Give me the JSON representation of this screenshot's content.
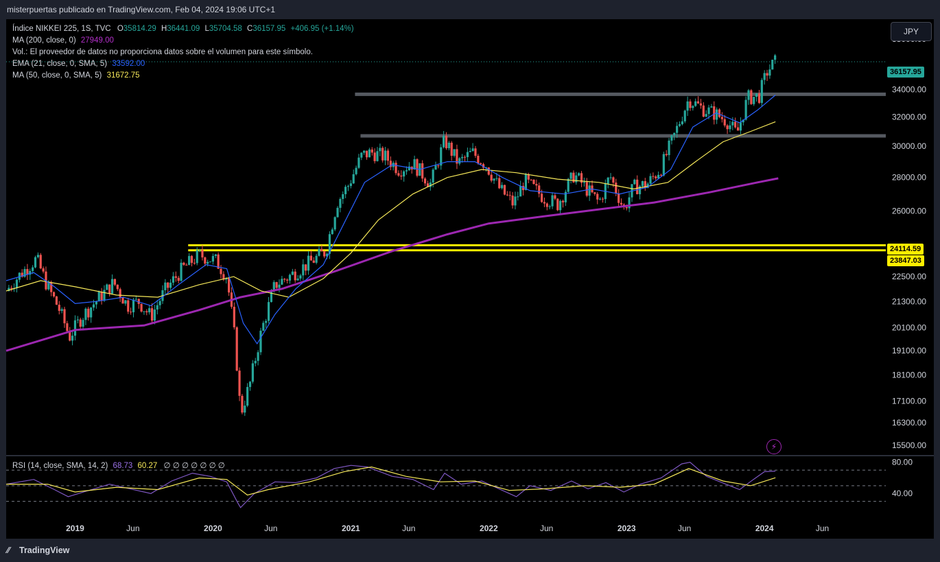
{
  "header": {
    "publisher_line": "misterpuertas publicado en TradingView.com, Feb 04, 2024 19:06 UTC+1"
  },
  "legend": {
    "symbol": "Índice NIKKEI 225, 1S, TVC",
    "open_label": "O",
    "open": "35814.29",
    "high_label": "H",
    "high": "36441.09",
    "low_label": "L",
    "low": "35704.58",
    "close_label": "C",
    "close": "36157.95",
    "change": "+406.95 (+1.14%)",
    "ma200_label": "MA (200, close, 0)",
    "ma200_value": "27949.00",
    "volume_note": "Vol.: El proveedor de datos no proporciona datos sobre el volumen para este símbolo.",
    "ema21_label": "EMA (21, close, 0, SMA, 5)",
    "ema21_value": "33592.00",
    "ma50_label": "MA (50, close, 0, SMA, 5)",
    "ma50_value": "31672.75"
  },
  "rsi_legend": {
    "label": "RSI (14, close, SMA, 14, 2)",
    "rsi_value": "68.73",
    "rsi_ma_value": "60.27",
    "placeholders": "∅ ∅ ∅ ∅ ∅ ∅ ∅"
  },
  "currency_button": "JPY",
  "price_tags": {
    "last": "36157.95",
    "level_upper": "24114.59",
    "level_lower": "23847.03"
  },
  "footer": {
    "brand": "TradingView"
  },
  "colors": {
    "up": "#26a69a",
    "down": "#ef5350",
    "ma200": "#9c27b0",
    "ema21": "#2962ff",
    "ma50": "#f7e95a",
    "rsi": "#7e57c2",
    "resistance": "#555960",
    "support": "#ffee00"
  },
  "chart_data": {
    "type": "candlestick",
    "timeframe": "1S",
    "y_ticks": [
      "38000.00",
      "34000.00",
      "32000.00",
      "30000.00",
      "28000.00",
      "26000.00",
      "22500.00",
      "21300.00",
      "20100.00",
      "19100.00",
      "18100.00",
      "17100.00",
      "16300.00",
      "15500.00"
    ],
    "y_scale": "log",
    "ylim": [
      15200,
      39000
    ],
    "x_ticks": [
      {
        "label": "2019",
        "t": 2019.0
      },
      {
        "label": "Jun",
        "t": 2019.42
      },
      {
        "label": "2020",
        "t": 2020.0
      },
      {
        "label": "Jun",
        "t": 2020.42
      },
      {
        "label": "2021",
        "t": 2021.0
      },
      {
        "label": "Jun",
        "t": 2021.42
      },
      {
        "label": "2022",
        "t": 2022.0
      },
      {
        "label": "Jun",
        "t": 2022.42
      },
      {
        "label": "2023",
        "t": 2023.0
      },
      {
        "label": "Jun",
        "t": 2023.42
      },
      {
        "label": "2024",
        "t": 2024.0
      },
      {
        "label": "Jun",
        "t": 2024.42
      }
    ],
    "xlim": [
      2018.5,
      2024.88
    ],
    "close_path": [
      [
        2018.5,
        21800
      ],
      [
        2018.6,
        22600
      ],
      [
        2018.72,
        23400
      ],
      [
        2018.8,
        22000
      ],
      [
        2018.88,
        21000
      ],
      [
        2018.96,
        19700
      ],
      [
        2019.05,
        20600
      ],
      [
        2019.15,
        21300
      ],
      [
        2019.28,
        22200
      ],
      [
        2019.38,
        21100
      ],
      [
        2019.46,
        21300
      ],
      [
        2019.55,
        20600
      ],
      [
        2019.65,
        21800
      ],
      [
        2019.78,
        22900
      ],
      [
        2019.9,
        23600
      ],
      [
        2020.02,
        23300
      ],
      [
        2020.1,
        22500
      ],
      [
        2020.16,
        19500
      ],
      [
        2020.2,
        16600
      ],
      [
        2020.27,
        17800
      ],
      [
        2020.35,
        19900
      ],
      [
        2020.45,
        22100
      ],
      [
        2020.55,
        22500
      ],
      [
        2020.68,
        23100
      ],
      [
        2020.82,
        23800
      ],
      [
        2020.9,
        26500
      ],
      [
        2020.98,
        27500
      ],
      [
        2021.08,
        29400
      ],
      [
        2021.15,
        29600
      ],
      [
        2021.25,
        29300
      ],
      [
        2021.35,
        28500
      ],
      [
        2021.45,
        28900
      ],
      [
        2021.58,
        27600
      ],
      [
        2021.68,
        30400
      ],
      [
        2021.78,
        28900
      ],
      [
        2021.88,
        29600
      ],
      [
        2021.98,
        28800
      ],
      [
        2022.08,
        27300
      ],
      [
        2022.18,
        26400
      ],
      [
        2022.26,
        27800
      ],
      [
        2022.4,
        26800
      ],
      [
        2022.5,
        26400
      ],
      [
        2022.62,
        28200
      ],
      [
        2022.72,
        27200
      ],
      [
        2022.8,
        26500
      ],
      [
        2022.88,
        28100
      ],
      [
        2022.98,
        26100
      ],
      [
        2023.05,
        27400
      ],
      [
        2023.15,
        27600
      ],
      [
        2023.25,
        28600
      ],
      [
        2023.35,
        30800
      ],
      [
        2023.45,
        33300
      ],
      [
        2023.55,
        32600
      ],
      [
        2023.65,
        32200
      ],
      [
        2023.73,
        31700
      ],
      [
        2023.8,
        30800
      ],
      [
        2023.88,
        33400
      ],
      [
        2023.96,
        33500
      ],
      [
        2024.02,
        35400
      ],
      [
        2024.08,
        36157.95
      ]
    ],
    "ma200_path": [
      [
        2018.5,
        19100
      ],
      [
        2019.0,
        20000
      ],
      [
        2019.5,
        20200
      ],
      [
        2019.9,
        20900
      ],
      [
        2020.2,
        21500
      ],
      [
        2020.5,
        21900
      ],
      [
        2020.9,
        22800
      ],
      [
        2021.3,
        23800
      ],
      [
        2021.7,
        24700
      ],
      [
        2022.0,
        25300
      ],
      [
        2022.4,
        25700
      ],
      [
        2022.8,
        26100
      ],
      [
        2023.2,
        26500
      ],
      [
        2023.6,
        27100
      ],
      [
        2023.95,
        27700
      ],
      [
        2024.1,
        27949
      ]
    ],
    "ema21_path": [
      [
        2018.5,
        22300
      ],
      [
        2018.7,
        22700
      ],
      [
        2018.85,
        22000
      ],
      [
        2019.0,
        21200
      ],
      [
        2019.15,
        21300
      ],
      [
        2019.35,
        21500
      ],
      [
        2019.55,
        21100
      ],
      [
        2019.75,
        22100
      ],
      [
        2019.95,
        23100
      ],
      [
        2020.1,
        22900
      ],
      [
        2020.22,
        20300
      ],
      [
        2020.32,
        19400
      ],
      [
        2020.45,
        20700
      ],
      [
        2020.6,
        21900
      ],
      [
        2020.8,
        23100
      ],
      [
        2020.95,
        25300
      ],
      [
        2021.1,
        27700
      ],
      [
        2021.3,
        28800
      ],
      [
        2021.5,
        28500
      ],
      [
        2021.7,
        29000
      ],
      [
        2021.9,
        29000
      ],
      [
        2022.1,
        28000
      ],
      [
        2022.3,
        27200
      ],
      [
        2022.55,
        27000
      ],
      [
        2022.75,
        27300
      ],
      [
        2022.95,
        27000
      ],
      [
        2023.15,
        27400
      ],
      [
        2023.32,
        28500
      ],
      [
        2023.48,
        31300
      ],
      [
        2023.65,
        32300
      ],
      [
        2023.82,
        31600
      ],
      [
        2023.95,
        32500
      ],
      [
        2024.08,
        33592
      ]
    ],
    "ma50_path": [
      [
        2018.5,
        21800
      ],
      [
        2018.75,
        22300
      ],
      [
        2019.0,
        22000
      ],
      [
        2019.3,
        21600
      ],
      [
        2019.6,
        21500
      ],
      [
        2019.9,
        22100
      ],
      [
        2020.15,
        22500
      ],
      [
        2020.35,
        21800
      ],
      [
        2020.55,
        21500
      ],
      [
        2020.8,
        22400
      ],
      [
        2021.0,
        23700
      ],
      [
        2021.2,
        25500
      ],
      [
        2021.45,
        27000
      ],
      [
        2021.7,
        28000
      ],
      [
        2021.95,
        28500
      ],
      [
        2022.2,
        28300
      ],
      [
        2022.5,
        27900
      ],
      [
        2022.8,
        27700
      ],
      [
        2023.05,
        27300
      ],
      [
        2023.3,
        27700
      ],
      [
        2023.5,
        29000
      ],
      [
        2023.7,
        30300
      ],
      [
        2023.9,
        31000
      ],
      [
        2024.08,
        31672.75
      ]
    ],
    "horizontal_levels": [
      {
        "name": "resistance-upper",
        "value": 33650,
        "from": 2021.03,
        "to": 2024.88
      },
      {
        "name": "resistance-lower",
        "value": 30700,
        "from": 2021.07,
        "to": 2024.88
      },
      {
        "name": "support-upper",
        "value": 24114.59,
        "from": 2019.82,
        "to": 2024.88
      },
      {
        "name": "support-lower",
        "value": 23847.03,
        "from": 2019.82,
        "to": 2024.88
      }
    ],
    "rsi": {
      "levels": [
        70,
        50,
        30
      ],
      "y_ticks": [
        "80.00",
        "40.00"
      ],
      "ylim": [
        20,
        85
      ],
      "rsi_path": [
        [
          2018.5,
          52
        ],
        [
          2018.7,
          58
        ],
        [
          2018.85,
          45
        ],
        [
          2018.95,
          36
        ],
        [
          2019.1,
          44
        ],
        [
          2019.25,
          52
        ],
        [
          2019.4,
          46
        ],
        [
          2019.55,
          40
        ],
        [
          2019.7,
          56
        ],
        [
          2019.85,
          66
        ],
        [
          2019.98,
          62
        ],
        [
          2020.1,
          55
        ],
        [
          2020.18,
          28
        ],
        [
          2020.2,
          22
        ],
        [
          2020.3,
          40
        ],
        [
          2020.45,
          55
        ],
        [
          2020.6,
          54
        ],
        [
          2020.75,
          60
        ],
        [
          2020.88,
          72
        ],
        [
          2021.0,
          76
        ],
        [
          2021.12,
          74
        ],
        [
          2021.3,
          62
        ],
        [
          2021.45,
          58
        ],
        [
          2021.6,
          45
        ],
        [
          2021.68,
          66
        ],
        [
          2021.8,
          52
        ],
        [
          2021.95,
          56
        ],
        [
          2022.1,
          44
        ],
        [
          2022.2,
          36
        ],
        [
          2022.3,
          50
        ],
        [
          2022.45,
          44
        ],
        [
          2022.6,
          56
        ],
        [
          2022.72,
          46
        ],
        [
          2022.85,
          54
        ],
        [
          2022.98,
          42
        ],
        [
          2023.1,
          52
        ],
        [
          2023.25,
          60
        ],
        [
          2023.4,
          78
        ],
        [
          2023.46,
          80
        ],
        [
          2023.58,
          62
        ],
        [
          2023.72,
          52
        ],
        [
          2023.82,
          45
        ],
        [
          2023.92,
          58
        ],
        [
          2024.0,
          68
        ],
        [
          2024.08,
          68.73
        ]
      ],
      "rsi_ma_path": [
        [
          2018.5,
          52
        ],
        [
          2018.8,
          52
        ],
        [
          2019.0,
          42
        ],
        [
          2019.3,
          48
        ],
        [
          2019.6,
          45
        ],
        [
          2019.9,
          60
        ],
        [
          2020.1,
          58
        ],
        [
          2020.25,
          38
        ],
        [
          2020.4,
          45
        ],
        [
          2020.7,
          55
        ],
        [
          2020.95,
          68
        ],
        [
          2021.15,
          74
        ],
        [
          2021.4,
          62
        ],
        [
          2021.65,
          55
        ],
        [
          2021.9,
          56
        ],
        [
          2022.15,
          44
        ],
        [
          2022.4,
          46
        ],
        [
          2022.7,
          50
        ],
        [
          2022.95,
          48
        ],
        [
          2023.2,
          52
        ],
        [
          2023.45,
          72
        ],
        [
          2023.7,
          56
        ],
        [
          2023.9,
          50
        ],
        [
          2024.08,
          60.27
        ]
      ]
    }
  }
}
